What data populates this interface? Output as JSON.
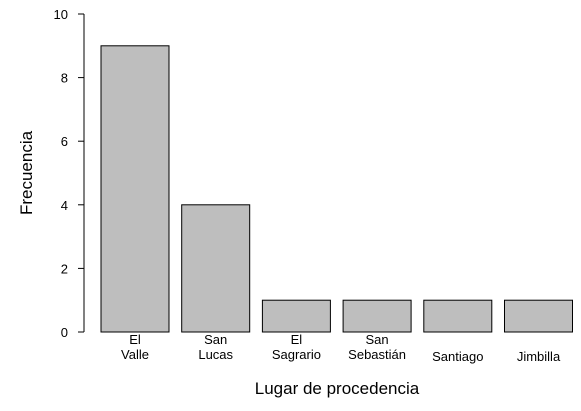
{
  "chart_data": {
    "type": "bar",
    "title": "",
    "xlabel": "Lugar de procedencia",
    "ylabel": "Frecuencia",
    "categories": [
      [
        "El",
        "Valle"
      ],
      [
        "San",
        "Lucas"
      ],
      [
        "El",
        "Sagrario"
      ],
      [
        "San",
        "Sebastián"
      ],
      [
        "Santiago"
      ],
      [
        "Jimbilla"
      ]
    ],
    "values": [
      9,
      4,
      1,
      1,
      1,
      1
    ],
    "ylim": [
      0,
      10
    ],
    "yticks": [
      "0",
      "2",
      "4",
      "6",
      "8",
      "10"
    ],
    "grid": false,
    "bar_color": "#bebebe",
    "edge_color": "#000000"
  }
}
